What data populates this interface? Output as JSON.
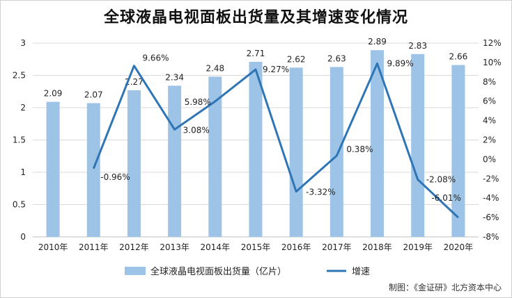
{
  "title": "全球液晶电视面板出货量及其增速变化情况",
  "credit": "制图：《金证研》北方资本中心",
  "colors": {
    "bar": "#9dc3e6",
    "line": "#2e75b6",
    "grid": "#d9d9d9",
    "text": "#222222"
  },
  "chart_data": {
    "type": "bar",
    "categories": [
      "2010年",
      "2011年",
      "2012年",
      "2013年",
      "2014年",
      "2015年",
      "2016年",
      "2017年",
      "2018年",
      "2019年",
      "2020年"
    ],
    "ylim": [
      0,
      3
    ],
    "ylim_right": [
      -8,
      12
    ],
    "yticks": [
      "0",
      "0.5",
      "1",
      "1.5",
      "2",
      "2.5",
      "3"
    ],
    "yticks_right": [
      "-8%",
      "-6%",
      "-4%",
      "-2%",
      "0%",
      "2%",
      "4%",
      "6%",
      "8%",
      "10%",
      "12%"
    ],
    "grid": true,
    "legend_position": "bottom",
    "series": [
      {
        "name": "全球液晶电视面板出货量（亿片）",
        "type": "bar",
        "axis": "left",
        "values": [
          2.09,
          2.07,
          2.27,
          2.34,
          2.48,
          2.71,
          2.62,
          2.63,
          2.89,
          2.83,
          2.66
        ],
        "labels": [
          "2.09",
          "2.07",
          "2.27",
          "2.34",
          "2.48",
          "2.71",
          "2.62",
          "2.63",
          "2.89",
          "2.83",
          "2.66"
        ]
      },
      {
        "name": "增速",
        "type": "line",
        "axis": "right",
        "values": [
          null,
          -0.96,
          9.66,
          3.08,
          5.98,
          9.27,
          -3.32,
          0.38,
          9.89,
          -2.08,
          -6.01
        ],
        "labels": [
          "",
          "-0.96%",
          "9.66%",
          "3.08%",
          "5.98%",
          "9.27%",
          "-3.32%",
          "0.38%",
          "9.89%",
          "-2.08%",
          "-6.01%"
        ]
      }
    ]
  }
}
